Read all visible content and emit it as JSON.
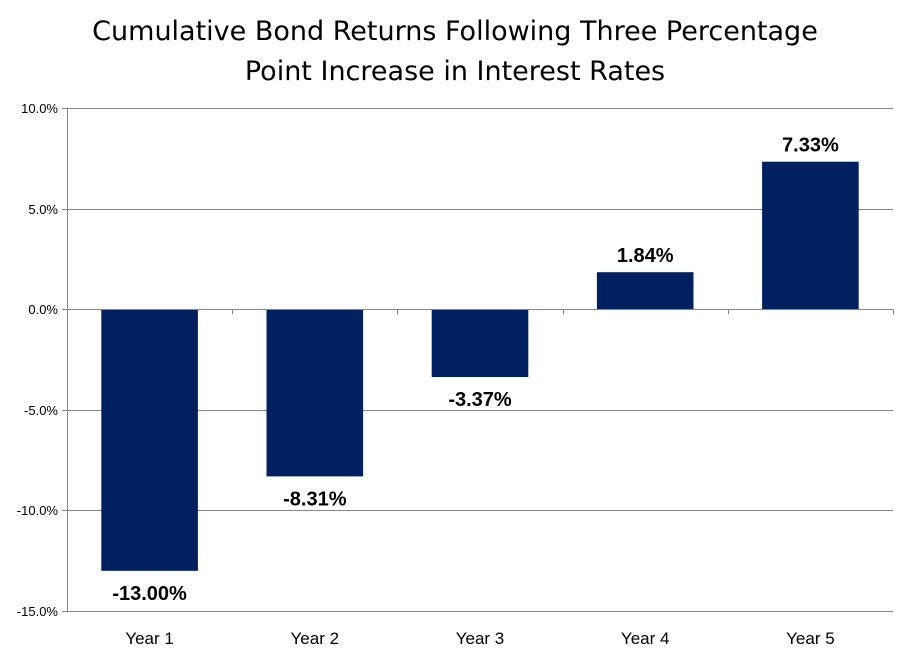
{
  "chart_data": {
    "type": "bar",
    "title": "Cumulative Bond Returns Following Three Percentage Point Increase in Interest Rates",
    "title_lines": [
      "Cumulative Bond Returns Following Three Percentage",
      "Point Increase in Interest Rates"
    ],
    "categories": [
      "Year 1",
      "Year 2",
      "Year 3",
      "Year 4",
      "Year 5"
    ],
    "values": [
      -13.0,
      -8.31,
      -3.37,
      1.84,
      7.33
    ],
    "data_labels": [
      "-13.00%",
      "-8.31%",
      "-3.37%",
      "1.84%",
      "7.33%"
    ],
    "ylim": [
      -15,
      10
    ],
    "y_ticks": [
      10,
      5,
      0,
      -5,
      -10,
      -15
    ],
    "y_tick_labels": [
      "10.0%",
      "5.0%",
      "0.0%",
      "-5.0%",
      "-10.0%",
      "-15.0%"
    ],
    "xlabel": "",
    "ylabel": "",
    "grid": true,
    "legend": "none",
    "bar_color": "#002060",
    "grid_color": "#868686"
  }
}
